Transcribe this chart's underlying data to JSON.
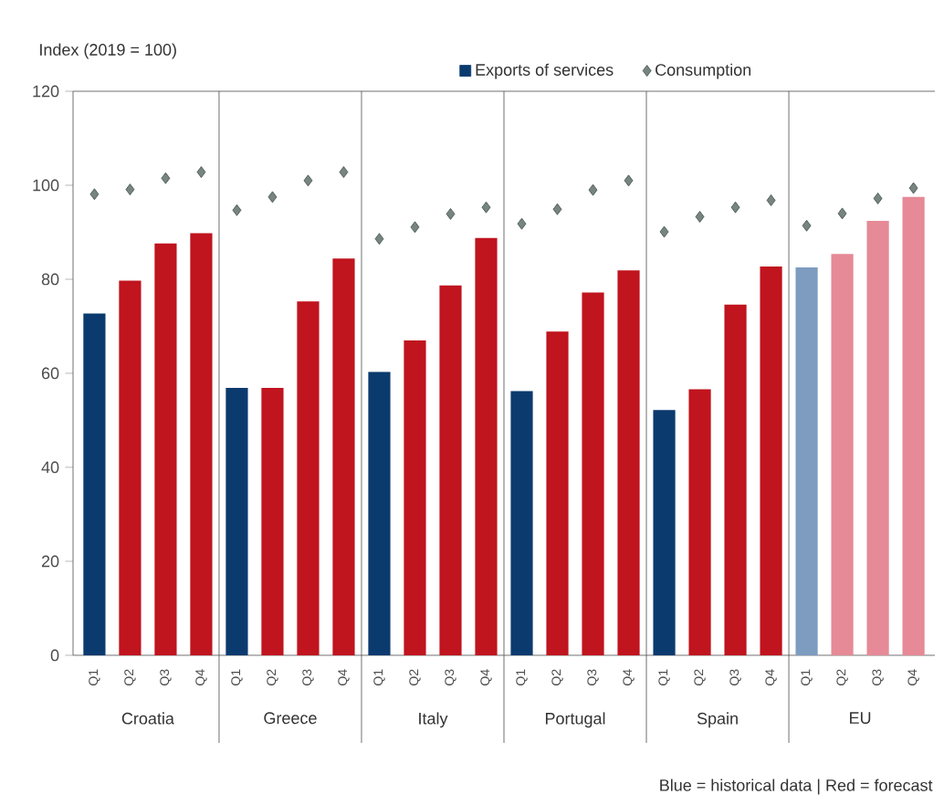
{
  "chart_data": {
    "type": "bar",
    "ylabel": "Index (2019 = 100)",
    "categories": [
      "Q1",
      "Q2",
      "Q3",
      "Q4",
      "Q1",
      "Q2",
      "Q3",
      "Q4",
      "Q1",
      "Q2",
      "Q3",
      "Q4",
      "Q1",
      "Q2",
      "Q3",
      "Q4",
      "Q1",
      "Q2",
      "Q3",
      "Q4",
      "Q1",
      "Q2",
      "Q3",
      "Q4"
    ],
    "series": [
      {
        "name": "Exports of services",
        "color": "#0b3a6e",
        "colors": [
          "#0b3a6e",
          "#c0141e",
          "#c0141e",
          "#c0141e",
          "#0b3a6e",
          "#c0141e",
          "#c0141e",
          "#c0141e",
          "#0b3a6e",
          "#c0141e",
          "#c0141e",
          "#c0141e",
          "#0b3a6e",
          "#c0141e",
          "#c0141e",
          "#c0141e",
          "#0b3a6e",
          "#c0141e",
          "#c0141e",
          "#c0141e",
          "#7d9cc0",
          "#e58a96",
          "#e58a96",
          "#e58a96"
        ],
        "values": [
          72.7,
          79.7,
          87.6,
          89.8,
          56.9,
          56.9,
          75.3,
          84.4,
          60.3,
          67,
          78.7,
          88.8,
          56.2,
          68.9,
          77.2,
          81.9,
          52.2,
          56.6,
          74.6,
          82.7,
          82.5,
          85.4,
          92.4,
          97.5
        ]
      },
      {
        "name": "Consumption",
        "type": "scatter",
        "marker": "diamond",
        "color": "#3d4f4a",
        "values": [
          98.1,
          99.1,
          101.5,
          102.8,
          94.7,
          97.5,
          101,
          102.8,
          88.6,
          91.1,
          93.9,
          95.3,
          91.8,
          94.9,
          99,
          101,
          90.1,
          93.3,
          95.3,
          96.8,
          91.4,
          94,
          97.2,
          99.4
        ]
      }
    ],
    "ylim": [
      0,
      120
    ],
    "yticks": [
      0,
      20,
      40,
      60,
      80,
      100,
      120
    ],
    "grid": false,
    "legend": "top",
    "annotations": [
      "Croatia",
      "Greece",
      "Italy",
      "Portugal",
      "Spain",
      "EU",
      "Blue = historical data | Red = forecast"
    ]
  }
}
